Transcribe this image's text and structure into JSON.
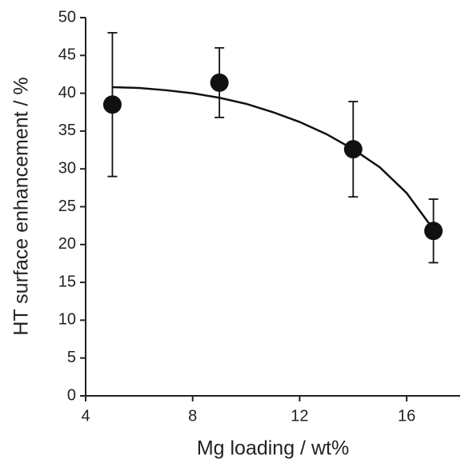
{
  "chart_data": {
    "type": "scatter",
    "x_label": "Mg loading / wt%",
    "y_label": "HT surface enhancement / %",
    "x": [
      5,
      9,
      14,
      17
    ],
    "values": [
      38.5,
      41.4,
      32.6,
      21.8
    ],
    "errors": [
      9.5,
      4.6,
      6.3,
      4.2
    ],
    "color": "#111111",
    "fit_x": [
      5,
      6,
      7,
      8,
      9,
      10,
      11,
      12,
      13,
      14,
      15,
      16,
      17
    ],
    "fit_values": [
      40.8,
      40.7,
      40.4,
      40.0,
      39.4,
      38.6,
      37.5,
      36.2,
      34.6,
      32.6,
      30.2,
      26.8,
      22.0
    ],
    "xlim": [
      4,
      18
    ],
    "xticks": [
      4,
      8,
      12,
      16
    ],
    "ylim": [
      0,
      50
    ],
    "yticks": [
      0,
      5,
      10,
      15,
      20,
      25,
      30,
      35,
      40,
      45,
      50
    ]
  }
}
